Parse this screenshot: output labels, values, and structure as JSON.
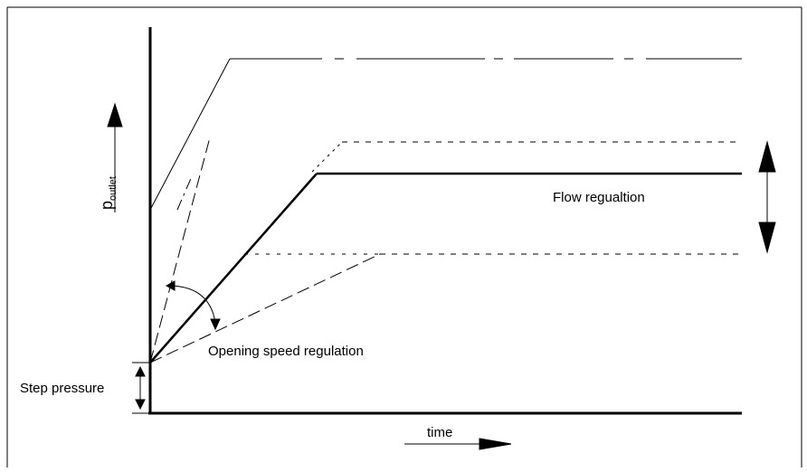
{
  "diagram": {
    "y_axis_label": "p",
    "y_axis_label_subscript": "outlet",
    "x_axis_label": "time",
    "annotations": {
      "flow_regulation": "Flow regualtion",
      "opening_speed_regulation": "Opening speed regulation",
      "step_pressure": "Step pressure"
    }
  }
}
